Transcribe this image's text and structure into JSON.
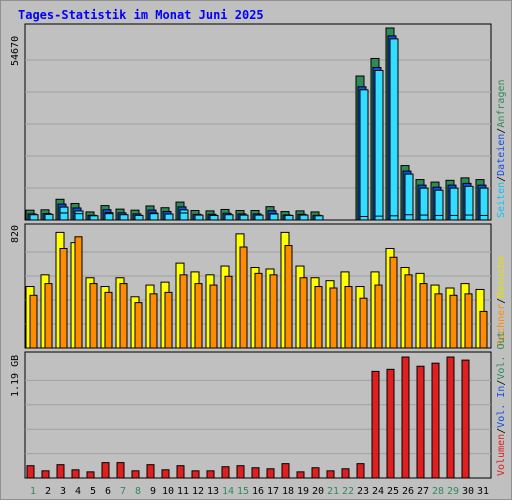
{
  "title": "Tages-Statistik im Monat Juni 2025",
  "colors": {
    "background": "#c0c0c0",
    "frame": "#909090",
    "title": "#0000ff",
    "hits_front": "#33ddff",
    "hits_back": "#2e8b57",
    "files_front": "#33ddff",
    "files_back": "#1150e0",
    "pages_front": "#ff8c00",
    "pages_back": "#ffff00",
    "volume": "#e02020",
    "weekend_day": "#2e8b57",
    "weekday": "#1a1a8a",
    "label_hits": "#2e8b57",
    "label_files": "#1150e0",
    "label_pages": "#00c8ff",
    "label_visits": "#e0e000",
    "label_sites": "#ff8c00",
    "label_volin": "#1150e0",
    "label_volout": "#2e8b57",
    "label_volume": "#e02020"
  },
  "chart_data": [
    {
      "type": "bar",
      "panel": "top",
      "ymax_label": "54670",
      "ymax": 54670,
      "side_labels": [
        "Anfragen",
        "Dateien",
        "Seiten"
      ],
      "series": [
        {
          "name": "Anfragen",
          "values": [
            2800,
            2900,
            5900,
            4700,
            2300,
            4100,
            3100,
            2800,
            4000,
            3500,
            5100,
            2700,
            2600,
            3000,
            2700,
            2700,
            3800,
            2400,
            2600,
            2300,
            0,
            0,
            41000,
            46000,
            54670,
            15500,
            11500,
            10800,
            11300,
            12000,
            11500
          ]
        },
        {
          "name": "Dateien",
          "values": [
            2300,
            2400,
            5100,
            4000,
            1900,
            3500,
            2600,
            2300,
            3400,
            3000,
            4300,
            2200,
            2200,
            2500,
            2300,
            2300,
            3200,
            2000,
            2200,
            1900,
            0,
            0,
            38500,
            44000,
            53000,
            14500,
            10500,
            9900,
            10500,
            11000,
            10500
          ]
        },
        {
          "name": "Seiten",
          "values": [
            1500,
            1600,
            2000,
            1800,
            1200,
            1800,
            1500,
            1300,
            1800,
            1700,
            2000,
            1400,
            1300,
            1500,
            1400,
            1400,
            1700,
            1300,
            1400,
            1200,
            0,
            0,
            1000,
            1100,
            1200,
            1500,
            1400,
            1300,
            1300,
            1400,
            1300
          ]
        }
      ]
    },
    {
      "type": "bar",
      "panel": "middle",
      "ymax_label": "820",
      "ymax": 820,
      "side_labels": [
        "Besuche",
        "Rechner"
      ],
      "series": [
        {
          "name": "Besuche",
          "values": [
            420,
            500,
            790,
            720,
            480,
            420,
            480,
            350,
            430,
            450,
            580,
            520,
            500,
            560,
            780,
            550,
            540,
            790,
            560,
            480,
            460,
            520,
            420,
            520,
            680,
            550,
            510,
            430,
            410,
            440,
            400
          ]
        },
        {
          "name": "Rechner",
          "values": [
            360,
            440,
            680,
            760,
            440,
            380,
            440,
            310,
            370,
            380,
            500,
            440,
            430,
            490,
            690,
            510,
            500,
            700,
            480,
            420,
            410,
            420,
            340,
            430,
            620,
            500,
            440,
            370,
            360,
            370,
            250
          ]
        }
      ]
    },
    {
      "type": "bar",
      "panel": "bottom",
      "ymax_label": "1.19 GB",
      "ymax": 1.19,
      "side_labels": [
        "Vol. Out",
        "Vol. In",
        "Volumen"
      ],
      "series": [
        {
          "name": "Volumen",
          "values": [
            0.12,
            0.07,
            0.13,
            0.08,
            0.06,
            0.15,
            0.15,
            0.07,
            0.13,
            0.08,
            0.12,
            0.07,
            0.07,
            0.11,
            0.12,
            0.1,
            0.09,
            0.14,
            0.06,
            0.1,
            0.07,
            0.09,
            0.14,
            1.04,
            1.06,
            1.18,
            1.09,
            1.12,
            1.18,
            1.15,
            0
          ]
        }
      ]
    }
  ],
  "days": [
    "1",
    "2",
    "3",
    "4",
    "5",
    "6",
    "7",
    "8",
    "9",
    "10",
    "11",
    "12",
    "13",
    "14",
    "15",
    "16",
    "17",
    "18",
    "19",
    "20",
    "21",
    "22",
    "23",
    "24",
    "25",
    "26",
    "27",
    "28",
    "29",
    "30",
    "31"
  ],
  "weekend_days": [
    "1",
    "7",
    "8",
    "14",
    "15",
    "21",
    "22",
    "28",
    "29"
  ]
}
